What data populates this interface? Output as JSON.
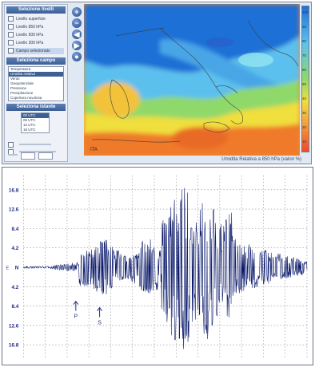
{
  "viewer": {
    "sidebar": {
      "header_1": "Selezione livelli",
      "options": [
        "Livello superficie",
        "Livello 850 hPa",
        "Livello 500 hPa",
        "Livello 300 hPa",
        "Campo selezionato"
      ],
      "selected_option": 4,
      "header_2": "Seleziona campo",
      "list_items": [
        "Temperatura",
        "Umidita relativa",
        "Vento",
        "Geopotenziale",
        "Pressione",
        "Precipitazione",
        "Copertura nuvolosa"
      ],
      "active_list_item": 1,
      "header_3": "Seleziona istante",
      "time_items": [
        "00 UTC",
        "06 UTC",
        "12 UTC",
        "18 UTC"
      ],
      "active_time_item": 0
    },
    "zoom_buttons": [
      "+",
      "−",
      "◀",
      "▶",
      "●"
    ],
    "map_caption": "Umidita Relativa a 850 hPa (valori %)",
    "map_label": "ITA",
    "colorbar_ticks": [
      "100",
      "90",
      "80",
      "70",
      "60",
      "50",
      "40",
      "30",
      "20",
      "10"
    ],
    "colors": {
      "deep_blue": "#1f6fd6",
      "light_blue": "#5cc0ee",
      "cyan": "#8fe3f0",
      "green": "#8ed46b",
      "yellow": "#f0df3c",
      "orange": "#f5a23a",
      "red_orange": "#ef7a2b"
    }
  },
  "seismogram": {
    "y_ticks_upper": [
      "16.8",
      "12.6",
      "8.4",
      "4.2"
    ],
    "center_label": "N",
    "left_marker": "E",
    "y_ticks_lower": [
      "4.2",
      "8.4",
      "12.6",
      "16.8"
    ],
    "phase_p": "P",
    "phase_s": "S",
    "trace_color": "#0b1a6b",
    "grid_color": "#8a8a8a",
    "label_color": "#1d2d8a"
  }
}
